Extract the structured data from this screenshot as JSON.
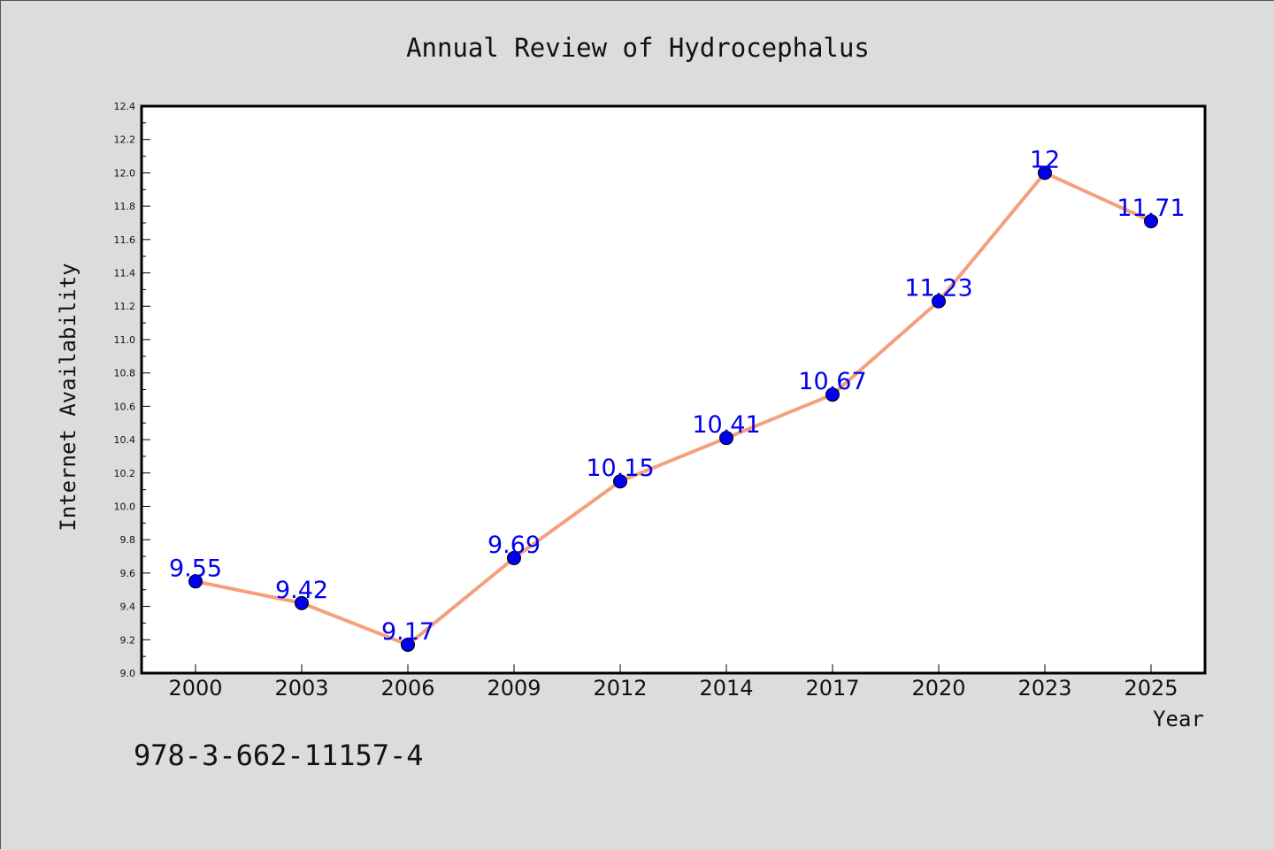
{
  "chart_data": {
    "type": "line",
    "title": "Annual Review of Hydrocephalus",
    "xlabel": "Year",
    "ylabel": "Internet Availability",
    "categories": [
      "2000",
      "2003",
      "2006",
      "2009",
      "2012",
      "2014",
      "2017",
      "2020",
      "2023",
      "2025"
    ],
    "series": [
      {
        "values": [
          9.55,
          9.42,
          9.17,
          9.69,
          10.15,
          10.41,
          10.67,
          11.23,
          12,
          11.71
        ],
        "labels": [
          "9.55",
          "9.42",
          "9.17",
          "9.69",
          "10.15",
          "10.41",
          "10.67",
          "11.23",
          "12",
          "11.71"
        ],
        "line_color": "#f4a07c",
        "marker_color": "#0000ee"
      }
    ],
    "ylim": [
      9.0,
      12.4
    ],
    "yticks": [
      "9.0",
      "9.2",
      "9.4",
      "9.6",
      "9.8",
      "10.0",
      "10.2",
      "10.4",
      "10.6",
      "10.8",
      "11.0",
      "11.2",
      "11.4",
      "11.6",
      "11.8",
      "12.0",
      "12.2",
      "12.4"
    ],
    "grid": false,
    "legend": "none"
  },
  "footer": {
    "text": "978-3-662-11157-4"
  }
}
